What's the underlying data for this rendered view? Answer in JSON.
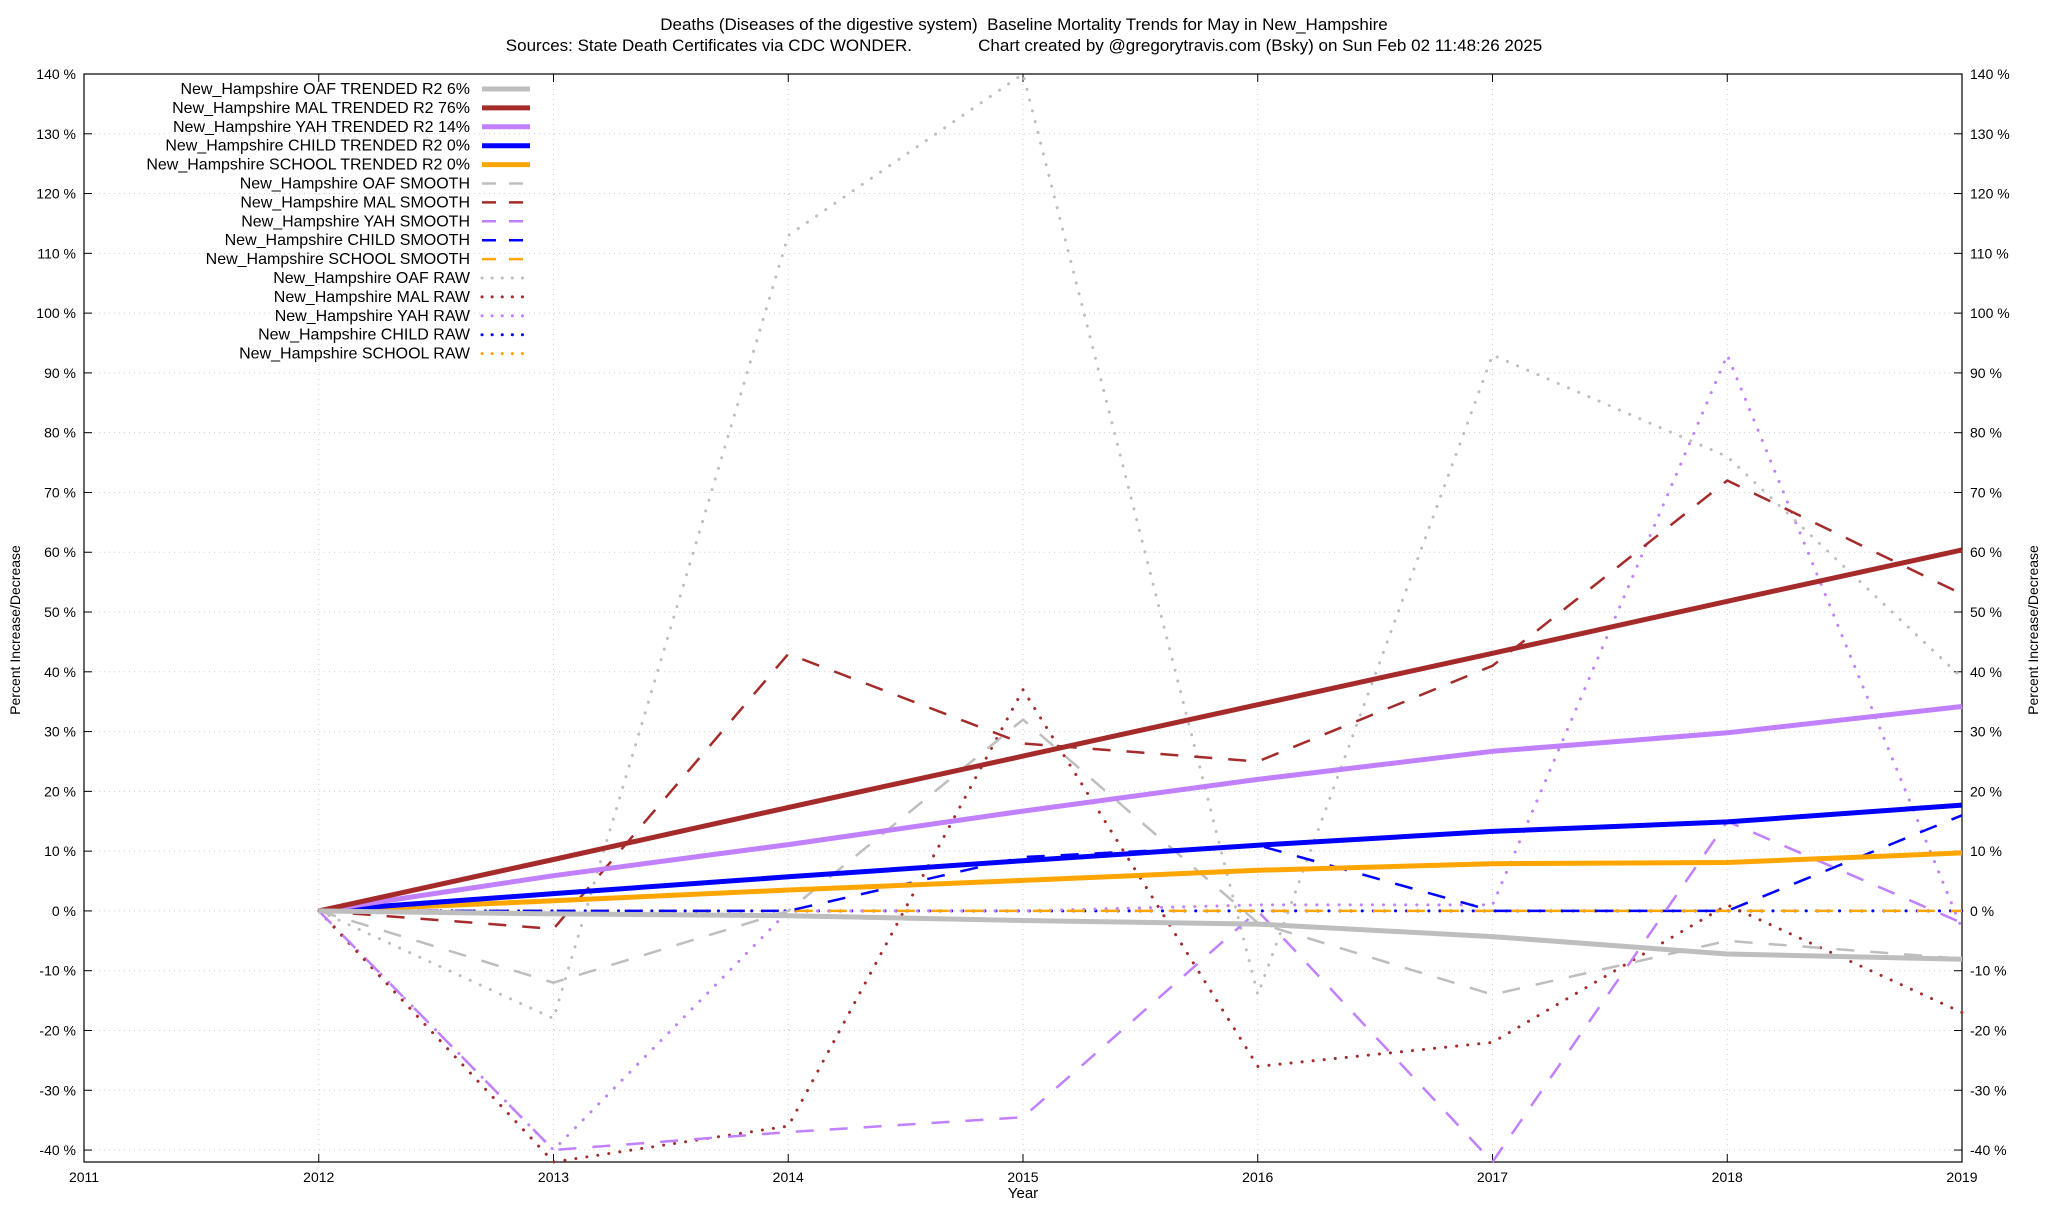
{
  "chart_data": {
    "type": "line",
    "title_line1": "Deaths (Diseases of the digestive system)  Baseline Mortality Trends for May in New_Hampshire",
    "title_line2": "Sources: State Death Certificates via CDC WONDER.              Chart created by @gregorytravis.com (Bsky) on Sun Feb 02 11:48:26 2025",
    "xlabel": "Year",
    "ylabel": "Percent Increase/Decrease",
    "y2label": "Percent Increase/Decrease",
    "xlim": [
      2011,
      2019
    ],
    "ylim": [
      -42,
      140
    ],
    "x_ticks": [
      2011,
      2012,
      2013,
      2014,
      2015,
      2016,
      2017,
      2018,
      2019
    ],
    "y_ticks": [
      -40,
      -30,
      -20,
      -10,
      0,
      10,
      20,
      30,
      40,
      50,
      60,
      70,
      80,
      90,
      100,
      110,
      120,
      130,
      140
    ],
    "y_tick_suffix": " %",
    "grid": true,
    "legend_position": "top-left",
    "series": [
      {
        "name": "New_Hampshire OAF TRENDED R2  6%",
        "color": "#bebebe",
        "style": "solid",
        "x": [
          2012,
          2013,
          2014,
          2015,
          2016,
          2017,
          2018,
          2019
        ],
        "values": [
          0,
          -0.5,
          -0.8,
          -1.6,
          -2.2,
          -4.3,
          -7.2,
          -8.1
        ]
      },
      {
        "name": "New_Hampshire MAL TRENDED R2  76%",
        "color": "#a52a2a",
        "style": "solid",
        "x": [
          2012,
          2013,
          2014,
          2015,
          2016,
          2017,
          2018,
          2019
        ],
        "values": [
          0,
          8.6,
          17.3,
          25.9,
          34.5,
          43.1,
          51.8,
          60.4
        ]
      },
      {
        "name": "New_Hampshire YAH TRENDED R2  14%",
        "color": "#c080ff",
        "style": "solid",
        "x": [
          2012,
          2013,
          2014,
          2015,
          2016,
          2017,
          2018,
          2019
        ],
        "values": [
          0,
          5.9,
          11.1,
          16.7,
          22.0,
          26.7,
          29.8,
          34.2
        ]
      },
      {
        "name": "New_Hampshire CHILD TRENDED R2  0%",
        "color": "#0000ff",
        "style": "solid",
        "x": [
          2012,
          2013,
          2014,
          2015,
          2016,
          2017,
          2018,
          2019
        ],
        "values": [
          0,
          2.9,
          5.7,
          8.4,
          11.0,
          13.3,
          14.9,
          17.7
        ]
      },
      {
        "name": "New_Hampshire SCHOOL TRENDED R2  0%",
        "color": "#ffa500",
        "style": "solid",
        "x": [
          2012,
          2013,
          2014,
          2015,
          2016,
          2017,
          2018,
          2019
        ],
        "values": [
          0,
          1.7,
          3.5,
          5.1,
          6.8,
          7.9,
          8.1,
          9.7
        ]
      },
      {
        "name": "New_Hampshire OAF SMOOTH",
        "color": "#bebebe",
        "style": "dashed",
        "x": [
          2012,
          2013,
          2014,
          2015,
          2016,
          2017,
          2018,
          2019
        ],
        "values": [
          0,
          -12,
          0,
          32,
          -2,
          -14,
          -5,
          -8
        ]
      },
      {
        "name": "New_Hampshire MAL SMOOTH",
        "color": "#a52a2a",
        "style": "dashed",
        "x": [
          2012,
          2013,
          2014,
          2015,
          2016,
          2017,
          2018,
          2019
        ],
        "values": [
          0,
          -3,
          43,
          28,
          25,
          41,
          72,
          53
        ]
      },
      {
        "name": "New_Hampshire YAH SMOOTH",
        "color": "#c080ff",
        "style": "dashed",
        "x": [
          2012,
          2013,
          2014,
          2015,
          2016,
          2017,
          2018,
          2019
        ],
        "values": [
          0,
          -40,
          -37,
          -34.5,
          0,
          -42,
          15,
          -2
        ]
      },
      {
        "name": "New_Hampshire CHILD SMOOTH",
        "color": "#0000ff",
        "style": "dashed",
        "x": [
          2012,
          2013,
          2014,
          2015,
          2016,
          2017,
          2018,
          2019
        ],
        "values": [
          0,
          0,
          0,
          9,
          11,
          0,
          0,
          16
        ]
      },
      {
        "name": "New_Hampshire SCHOOL SMOOTH",
        "color": "#ffa500",
        "style": "dashed",
        "x": [
          2012,
          2013,
          2014,
          2015,
          2016,
          2017,
          2018,
          2019
        ],
        "values": [
          0,
          0,
          0,
          0,
          0,
          0,
          0,
          0
        ]
      },
      {
        "name": "New_Hampshire OAF RAW",
        "color": "#bebebe",
        "style": "dotted",
        "x": [
          2012,
          2013,
          2014,
          2015,
          2016,
          2017,
          2018,
          2019
        ],
        "values": [
          0,
          -18,
          113,
          140,
          -14,
          93,
          76,
          39
        ]
      },
      {
        "name": "New_Hampshire MAL RAW",
        "color": "#a52a2a",
        "style": "dotted",
        "x": [
          2012,
          2013,
          2014,
          2015,
          2016,
          2017,
          2018,
          2019
        ],
        "values": [
          0,
          -42,
          -36,
          37,
          -26,
          -22,
          1,
          -17
        ]
      },
      {
        "name": "New_Hampshire YAH RAW",
        "color": "#c080ff",
        "style": "dotted",
        "x": [
          2012,
          2013,
          2014,
          2015,
          2016,
          2017,
          2018,
          2019
        ],
        "values": [
          0,
          -40,
          0,
          0,
          1,
          1,
          93,
          -3
        ]
      },
      {
        "name": "New_Hampshire CHILD RAW",
        "color": "#0000ff",
        "style": "dotted",
        "x": [
          2012,
          2013,
          2014,
          2015,
          2016,
          2017,
          2018,
          2019
        ],
        "values": [
          0,
          0,
          0,
          0,
          0,
          0,
          0,
          0
        ]
      },
      {
        "name": "New_Hampshire SCHOOL RAW",
        "color": "#ffa500",
        "style": "dotted",
        "x": [
          2012,
          2013,
          2014,
          2015,
          2016,
          2017,
          2018,
          2019
        ],
        "values": [
          0,
          0,
          0,
          0,
          0,
          0,
          0,
          0
        ]
      }
    ]
  }
}
